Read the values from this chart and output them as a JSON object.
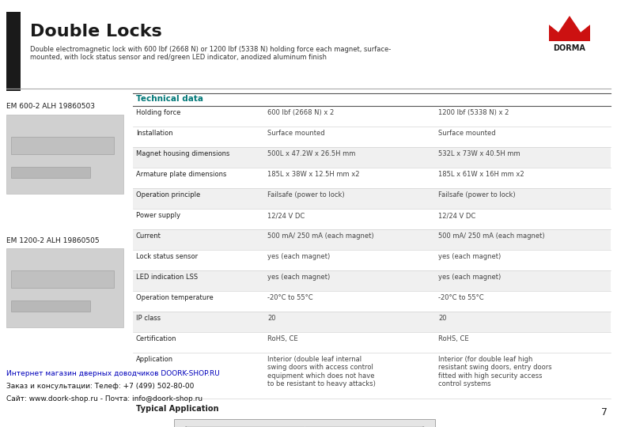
{
  "title": "Double Locks",
  "subtitle": "Double electromagnetic lock with 600 lbf (2668 N) or 1200 lbf (5338 N) holding force each magnet, surface-\nmounted, with lock status sensor and red/green LED indicator, anodized aluminum finish",
  "product1_label": "EM 600-2 ALH 19860503",
  "product2_label": "EM 1200-2 ALH 19860505",
  "tech_data_header": "Technical data",
  "table_rows": [
    [
      "Holding force",
      "600 lbf (2668 N) x 2",
      "1200 lbf (5338 N) x 2"
    ],
    [
      "Installation",
      "Surface mounted",
      "Surface mounted"
    ],
    [
      "Magnet housing dimensions",
      "500L x 47.2W x 26.5H mm",
      "532L x 73W x 40.5H mm"
    ],
    [
      "Armature plate dimensions",
      "185L x 38W x 12.5H mm x2",
      "185L x 61W x 16H mm x2"
    ],
    [
      "Operation principle",
      "Failsafe (power to lock)",
      "Failsafe (power to lock)"
    ],
    [
      "Power supply",
      "12/24 V DC",
      "12/24 V DC"
    ],
    [
      "Current",
      "500 mA/ 250 mA (each magnet)",
      "500 mA/ 250 mA (each magnet)"
    ],
    [
      "Lock status sensor",
      "yes (each magnet)",
      "yes (each magnet)"
    ],
    [
      "LED indication LSS",
      "yes (each magnet)",
      "yes (each magnet)"
    ],
    [
      "Operation temperature",
      "-20°C to 55°C",
      "-20°C to 55°C"
    ],
    [
      "IP class",
      "20",
      "20"
    ],
    [
      "Certification",
      "RoHS, CE",
      "RoHS, CE"
    ],
    [
      "Application",
      "Interior (double leaf internal\nswing doors with access control\nequipment which does not have\nto be resistant to heavy attacks)",
      "Interior (for double leaf high\nresistant swing doors, entry doors\nfitted with high security access\ncontrol systems"
    ]
  ],
  "shaded_rows": [
    2,
    4,
    6,
    8,
    10
  ],
  "typical_app_label": "Typical Application",
  "footer_text1": "Интернет магазин дверных доводчиков DOORK-SHOP.RU",
  "footer_text2": "Заказ и консультации: Телеф: +7 (499) 502-80-00",
  "footer_text3": "Сайт: www.doork-shop.ru - Почта: info@doork-shop.ru",
  "page_number": "7",
  "bg_color": "#ffffff"
}
